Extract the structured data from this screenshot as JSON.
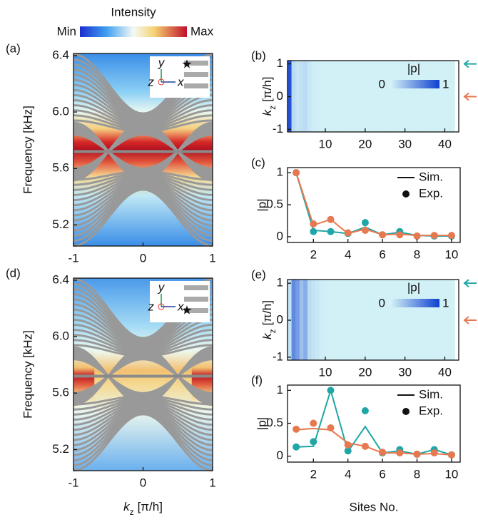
{
  "chart_data": [
    {
      "type": "band",
      "label": "(a)",
      "colorbar_title": "Intensity",
      "colorbar_labels": [
        "Min",
        "Max"
      ],
      "ylabel": "Frequency [kHz]",
      "xlim": [
        -1,
        1
      ],
      "xticks": [
        -1,
        0,
        1
      ],
      "ylim": [
        5.05,
        6.415
      ],
      "yticks": [
        5.2,
        5.6,
        {
          "value": 6,
          "label": "6.0"
        },
        6.4
      ],
      "inset_axes": [
        "y",
        "z",
        "x"
      ],
      "red_band": "full"
    },
    {
      "type": "heatmap",
      "label": "(b)",
      "ylabel": [
        "k",
        "z",
        "[π/h]"
      ],
      "xlim": [
        0.5,
        43.5
      ],
      "xticks": [
        10,
        20,
        30,
        40
      ],
      "ylim": [
        -1.08,
        1.1
      ],
      "yticks": [
        -1,
        0,
        1
      ],
      "colorbar_title": "|p|",
      "colorbar_ticks": [
        0,
        1
      ],
      "markers": [
        {
          "value": 1,
          "color": "#1fa6a6"
        },
        {
          "value": 0,
          "color": "#e8784f"
        }
      ],
      "values": [
        0.9,
        0.15,
        0.1,
        0.12,
        0.15,
        0.08,
        0.05,
        0.04,
        0.03,
        0.03,
        0.03,
        0.03,
        0.03,
        0.03,
        0.03,
        0.03,
        0.03,
        0.03,
        0.03,
        0.03,
        0.03,
        0.03,
        0.03,
        0.03,
        0.03,
        0.03,
        0.03,
        0.03,
        0.03,
        0.03,
        0.03,
        0.03,
        0.03,
        0.03,
        0.03,
        0.03,
        0.03,
        0.03,
        0.03,
        0.03,
        0.03,
        0.03
      ]
    },
    {
      "type": "line",
      "label": "(c)",
      "ylabel": "|p|",
      "legend": [
        "Sim.",
        "Exp."
      ],
      "xlim": [
        0.5,
        10.5
      ],
      "xticks": [
        2,
        4,
        6,
        8,
        10
      ],
      "ylim": [
        -0.09,
        1.08
      ],
      "yticks": [
        0,
        0.5,
        1
      ],
      "x": [
        1,
        2,
        3,
        4,
        5,
        6,
        7,
        8,
        9,
        10
      ],
      "series": [
        {
          "color": "#1fa6a6",
          "style": "line",
          "values": [
            1,
            0.1,
            0.08,
            0.05,
            0.15,
            0.03,
            0.07,
            0.02,
            0.01,
            0.01
          ]
        },
        {
          "color": "#1fa6a6",
          "style": "dots",
          "values": [
            1,
            0.08,
            0.08,
            0.05,
            0.22,
            0.03,
            0.08,
            0.01,
            0.01,
            0.01
          ]
        },
        {
          "color": "#e8784f",
          "style": "line",
          "values": [
            1,
            0.18,
            0.27,
            0.05,
            0.12,
            0.03,
            0.04,
            0.02,
            0.02,
            0.02
          ]
        },
        {
          "color": "#e8784f",
          "style": "dots",
          "values": [
            1,
            0.2,
            0.27,
            0.06,
            0.1,
            0.03,
            0.03,
            0.01,
            0.02,
            0.02
          ]
        }
      ]
    },
    {
      "type": "band",
      "label": "(d)",
      "ylabel": "Frequency [kHz]",
      "xlabel": [
        "k",
        "z",
        "[π/h]"
      ],
      "xlim": [
        -1,
        1
      ],
      "xticks": [
        -1,
        0,
        1
      ],
      "ylim": [
        5.05,
        6.415
      ],
      "yticks": [
        5.2,
        5.6,
        {
          "value": 6,
          "label": "6.0"
        },
        6.4
      ],
      "inset_axes": [
        "y",
        "z",
        "x"
      ],
      "red_band": "edges"
    },
    {
      "type": "heatmap",
      "label": "(e)",
      "ylabel": [
        "k",
        "z",
        "[π/h]"
      ],
      "xlim": [
        0.5,
        43.5
      ],
      "xticks": [
        10,
        20,
        30,
        40
      ],
      "ylim": [
        -1.08,
        1.1
      ],
      "yticks": [
        -1,
        0,
        1
      ],
      "colorbar_title": "|p|",
      "colorbar_ticks": [
        0,
        1
      ],
      "markers": [
        {
          "value": 1,
          "color": "#1fa6a6"
        },
        {
          "value": 0,
          "color": "#e8784f"
        }
      ],
      "values": [
        0.1,
        0.6,
        0.5,
        0.3,
        0.4,
        0.15,
        0.1,
        0.08,
        0.05,
        0.04,
        0.03,
        0.03,
        0.03,
        0.03,
        0.03,
        0.03,
        0.03,
        0.03,
        0.03,
        0.03,
        0.03,
        0.03,
        0.03,
        0.03,
        0.03,
        0.03,
        0.03,
        0.03,
        0.03,
        0.03,
        0.03,
        0.03,
        0.03,
        0.03,
        0.03,
        0.03,
        0.03,
        0.03,
        0.03,
        0.03,
        0.03,
        0.03
      ]
    },
    {
      "type": "line",
      "label": "(f)",
      "ylabel": "|p|",
      "xlabel": "Sites No.",
      "legend": [
        "Sim.",
        "Exp."
      ],
      "xlim": [
        0.5,
        10.5
      ],
      "xticks": [
        2,
        4,
        6,
        8,
        10
      ],
      "ylim": [
        -0.09,
        1.08
      ],
      "yticks": [
        0,
        0.5,
        1
      ],
      "x": [
        1,
        2,
        3,
        4,
        5,
        6,
        7,
        8,
        9,
        10
      ],
      "series": [
        {
          "color": "#1fa6a6",
          "style": "line",
          "values": [
            0.14,
            0.15,
            1,
            0.07,
            0.45,
            0.05,
            0.08,
            0.03,
            0.1,
            0.02
          ]
        },
        {
          "color": "#1fa6a6",
          "style": "dots",
          "values": [
            0.14,
            0.22,
            1,
            0.08,
            0.69,
            0.05,
            0.1,
            0.03,
            0.1,
            0.02
          ]
        },
        {
          "color": "#e8784f",
          "style": "line",
          "values": [
            0.4,
            0.42,
            0.4,
            0.2,
            0.15,
            0.05,
            0.05,
            0.03,
            0.04,
            0.02
          ]
        },
        {
          "color": "#e8784f",
          "style": "dots",
          "values": [
            0.41,
            0.5,
            0.43,
            0.17,
            0.15,
            0.06,
            0.05,
            0.03,
            0.05,
            0.02
          ]
        }
      ]
    }
  ]
}
